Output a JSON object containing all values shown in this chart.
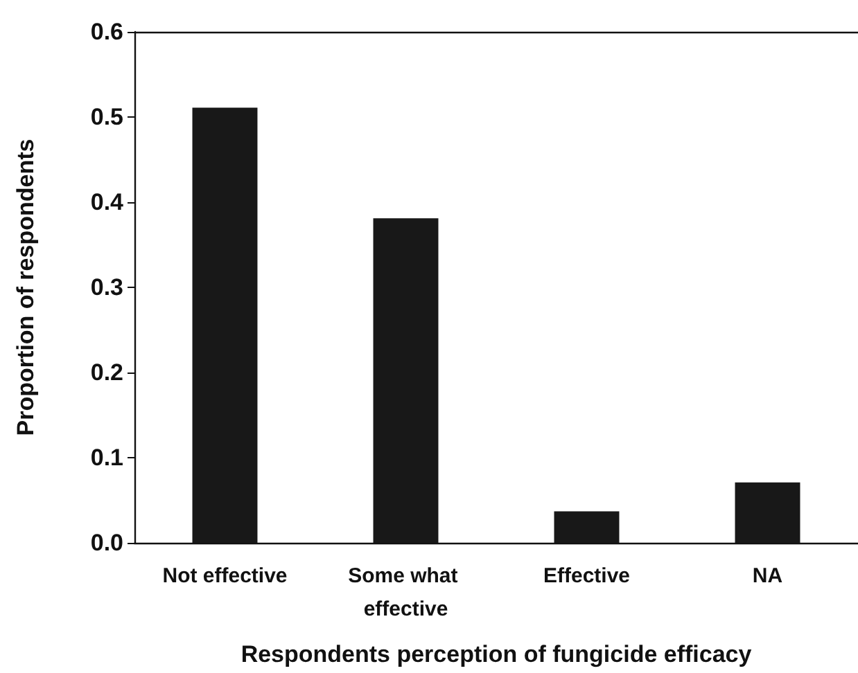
{
  "chart_data": {
    "type": "bar",
    "xlabel": "Respondents perception of fungicide efficacy",
    "ylabel": "Proportion of respondents",
    "categories": [
      "Not effective",
      "Some what effective",
      "Effective",
      "NA"
    ],
    "values": [
      0.511,
      0.381,
      0.037,
      0.071
    ],
    "color": "#181818",
    "ylim": [
      0,
      0.6
    ],
    "yticks": [
      {
        "value": 0,
        "label": "0.0"
      },
      0.1,
      0.2,
      0.3,
      0.4,
      0.5,
      0.6
    ],
    "grid": false
  }
}
